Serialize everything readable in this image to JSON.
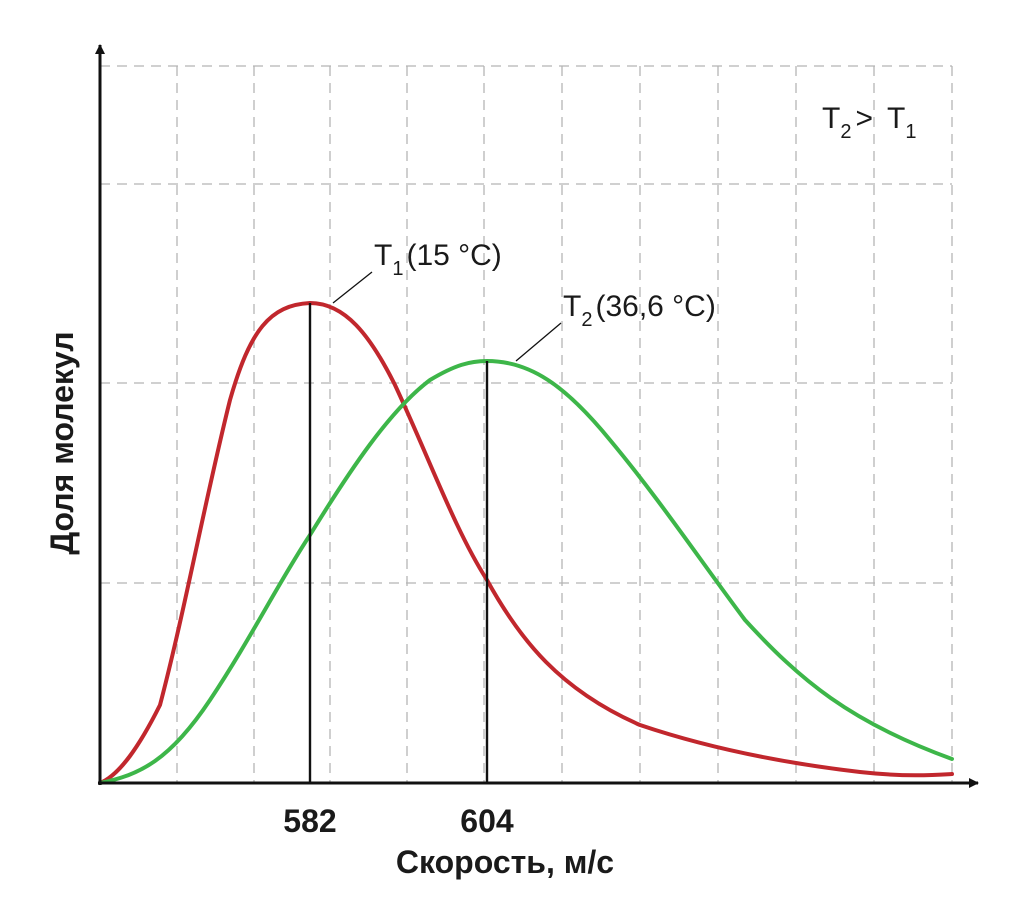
{
  "chart_data": {
    "type": "line",
    "xlabel": "Скорость, м/с",
    "ylabel": "Доля молекул",
    "x_ticks": [
      "582",
      "604"
    ],
    "grid": true,
    "relation": {
      "left": "T",
      "left_sub": "2",
      "op": ">",
      "right": "T",
      "right_sub": "1"
    },
    "series": [
      {
        "name": "T1",
        "label_main": "T",
        "label_sub": "1",
        "label_rest": "(15 °C)",
        "color": "#c1272d",
        "peak_x": 582
      },
      {
        "name": "T2",
        "label_main": "T",
        "label_sub": "2",
        "label_rest": "(36,6 °C)",
        "color": "#3db649",
        "peak_x": 604
      }
    ]
  }
}
